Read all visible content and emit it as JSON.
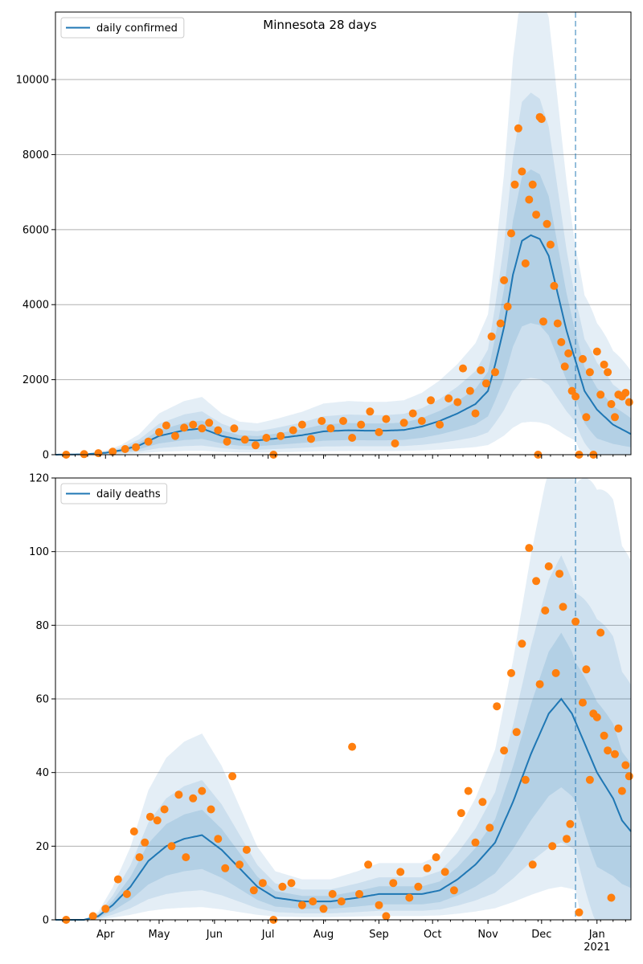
{
  "figure_title": "Minnesota 28 days",
  "colors": {
    "line": "#1f77b4",
    "points": "#ff7f0e",
    "band": "#1f77b4",
    "grid": "#b0b0b0",
    "forecast_marker": "#1f77b4"
  },
  "x_axis": {
    "month_ticks": [
      "Apr",
      "May",
      "Jun",
      "Jul",
      "Aug",
      "Sep",
      "Oct",
      "Nov",
      "Dec",
      "Jan"
    ],
    "year_label": "2021"
  },
  "chart_data": [
    {
      "type": "line",
      "legend_label": "daily confirmed",
      "legend_position": "top-left",
      "grid": "y",
      "x_range": [
        "2020-03-04",
        "2021-01-20"
      ],
      "ylim": [
        0,
        11800
      ],
      "yticks": [
        0,
        2000,
        4000,
        6000,
        8000,
        10000
      ],
      "forecast_start": "2020-12-20",
      "median_anchors": [
        [
          "2020-03-04",
          0
        ],
        [
          "2020-03-20",
          10
        ],
        [
          "2020-04-01",
          50
        ],
        [
          "2020-04-10",
          120
        ],
        [
          "2020-04-20",
          250
        ],
        [
          "2020-05-01",
          500
        ],
        [
          "2020-05-15",
          650
        ],
        [
          "2020-05-25",
          700
        ],
        [
          "2020-06-05",
          500
        ],
        [
          "2020-06-15",
          400
        ],
        [
          "2020-06-25",
          380
        ],
        [
          "2020-07-05",
          430
        ],
        [
          "2020-07-20",
          520
        ],
        [
          "2020-08-01",
          620
        ],
        [
          "2020-08-15",
          650
        ],
        [
          "2020-08-25",
          640
        ],
        [
          "2020-09-05",
          640
        ],
        [
          "2020-09-15",
          660
        ],
        [
          "2020-09-25",
          750
        ],
        [
          "2020-10-05",
          900
        ],
        [
          "2020-10-15",
          1100
        ],
        [
          "2020-10-25",
          1350
        ],
        [
          "2020-11-01",
          1700
        ],
        [
          "2020-11-05",
          2400
        ],
        [
          "2020-11-10",
          3400
        ],
        [
          "2020-11-15",
          4800
        ],
        [
          "2020-11-20",
          5700
        ],
        [
          "2020-11-25",
          5850
        ],
        [
          "2020-11-30",
          5750
        ],
        [
          "2020-12-05",
          5300
        ],
        [
          "2020-12-10",
          4300
        ],
        [
          "2020-12-15",
          3300
        ],
        [
          "2020-12-20",
          2500
        ],
        [
          "2020-12-25",
          1700
        ],
        [
          "2021-01-01",
          1200
        ],
        [
          "2021-01-10",
          800
        ],
        [
          "2021-01-20",
          550
        ]
      ],
      "points": [
        [
          "2020-03-10",
          0
        ],
        [
          "2020-03-20",
          15
        ],
        [
          "2020-03-28",
          40
        ],
        [
          "2020-04-05",
          80
        ],
        [
          "2020-04-12",
          150
        ],
        [
          "2020-04-18",
          200
        ],
        [
          "2020-04-25",
          350
        ],
        [
          "2020-05-01",
          600
        ],
        [
          "2020-05-05",
          780
        ],
        [
          "2020-05-10",
          500
        ],
        [
          "2020-05-15",
          720
        ],
        [
          "2020-05-20",
          800
        ],
        [
          "2020-05-25",
          700
        ],
        [
          "2020-05-29",
          850
        ],
        [
          "2020-06-03",
          650
        ],
        [
          "2020-06-08",
          350
        ],
        [
          "2020-06-12",
          700
        ],
        [
          "2020-06-18",
          400
        ],
        [
          "2020-06-24",
          250
        ],
        [
          "2020-06-30",
          450
        ],
        [
          "2020-07-04",
          0
        ],
        [
          "2020-07-08",
          500
        ],
        [
          "2020-07-15",
          650
        ],
        [
          "2020-07-20",
          800
        ],
        [
          "2020-07-25",
          420
        ],
        [
          "2020-07-31",
          900
        ],
        [
          "2020-08-05",
          700
        ],
        [
          "2020-08-12",
          900
        ],
        [
          "2020-08-17",
          450
        ],
        [
          "2020-08-22",
          800
        ],
        [
          "2020-08-27",
          1150
        ],
        [
          "2020-09-01",
          600
        ],
        [
          "2020-09-05",
          950
        ],
        [
          "2020-09-10",
          300
        ],
        [
          "2020-09-15",
          850
        ],
        [
          "2020-09-20",
          1100
        ],
        [
          "2020-09-25",
          900
        ],
        [
          "2020-09-30",
          1450
        ],
        [
          "2020-10-05",
          800
        ],
        [
          "2020-10-10",
          1500
        ],
        [
          "2020-10-15",
          1400
        ],
        [
          "2020-10-18",
          2300
        ],
        [
          "2020-10-22",
          1700
        ],
        [
          "2020-10-25",
          1100
        ],
        [
          "2020-10-28",
          2250
        ],
        [
          "2020-10-31",
          1900
        ],
        [
          "2020-11-03",
          3150
        ],
        [
          "2020-11-05",
          2200
        ],
        [
          "2020-11-08",
          3500
        ],
        [
          "2020-11-10",
          4650
        ],
        [
          "2020-11-12",
          3950
        ],
        [
          "2020-11-14",
          5900
        ],
        [
          "2020-11-16",
          7200
        ],
        [
          "2020-11-18",
          8700
        ],
        [
          "2020-11-20",
          7550
        ],
        [
          "2020-11-22",
          5100
        ],
        [
          "2020-11-24",
          6800
        ],
        [
          "2020-11-26",
          7200
        ],
        [
          "2020-11-28",
          6400
        ],
        [
          "2020-11-29",
          0
        ],
        [
          "2020-11-30",
          9000
        ],
        [
          "2020-12-01",
          8950
        ],
        [
          "2020-12-02",
          3550
        ],
        [
          "2020-12-04",
          6150
        ],
        [
          "2020-12-06",
          5600
        ],
        [
          "2020-12-08",
          4500
        ],
        [
          "2020-12-10",
          3500
        ],
        [
          "2020-12-12",
          3000
        ],
        [
          "2020-12-14",
          2350
        ],
        [
          "2020-12-16",
          2700
        ],
        [
          "2020-12-18",
          1700
        ],
        [
          "2020-12-20",
          1550
        ],
        [
          "2020-12-22",
          0
        ],
        [
          "2020-12-24",
          2550
        ],
        [
          "2020-12-26",
          1000
        ],
        [
          "2020-12-28",
          2200
        ],
        [
          "2020-12-30",
          0
        ],
        [
          "2021-01-01",
          2750
        ],
        [
          "2021-01-03",
          1600
        ],
        [
          "2021-01-05",
          2400
        ],
        [
          "2021-01-07",
          2200
        ],
        [
          "2021-01-09",
          1350
        ],
        [
          "2021-01-11",
          1000
        ],
        [
          "2021-01-13",
          1600
        ],
        [
          "2021-01-15",
          1550
        ],
        [
          "2021-01-17",
          1650
        ],
        [
          "2021-01-19",
          1400
        ]
      ]
    },
    {
      "type": "line",
      "legend_label": "daily deaths",
      "legend_position": "top-left",
      "grid": "y",
      "x_range": [
        "2020-03-04",
        "2021-01-20"
      ],
      "ylim": [
        0,
        120
      ],
      "yticks": [
        0,
        20,
        40,
        60,
        80,
        100,
        120
      ],
      "forecast_start": "2020-12-20",
      "median_anchors": [
        [
          "2020-03-04",
          0
        ],
        [
          "2020-03-20",
          0
        ],
        [
          "2020-03-28",
          1
        ],
        [
          "2020-04-05",
          4
        ],
        [
          "2020-04-15",
          9
        ],
        [
          "2020-04-25",
          16
        ],
        [
          "2020-05-05",
          20
        ],
        [
          "2020-05-15",
          22
        ],
        [
          "2020-05-25",
          23
        ],
        [
          "2020-06-05",
          19
        ],
        [
          "2020-06-15",
          14
        ],
        [
          "2020-06-25",
          9
        ],
        [
          "2020-07-05",
          6
        ],
        [
          "2020-07-20",
          5
        ],
        [
          "2020-08-05",
          5
        ],
        [
          "2020-08-20",
          6
        ],
        [
          "2020-09-01",
          7
        ],
        [
          "2020-09-15",
          7
        ],
        [
          "2020-09-25",
          7
        ],
        [
          "2020-10-05",
          8
        ],
        [
          "2020-10-15",
          11
        ],
        [
          "2020-10-25",
          15
        ],
        [
          "2020-11-05",
          21
        ],
        [
          "2020-11-15",
          32
        ],
        [
          "2020-11-25",
          45
        ],
        [
          "2020-12-05",
          56
        ],
        [
          "2020-12-12",
          60
        ],
        [
          "2020-12-18",
          56
        ],
        [
          "2020-12-25",
          48
        ],
        [
          "2021-01-01",
          40
        ],
        [
          "2021-01-10",
          33
        ],
        [
          "2021-01-15",
          27
        ],
        [
          "2021-01-20",
          24
        ]
      ],
      "points": [
        [
          "2020-03-10",
          0
        ],
        [
          "2020-03-25",
          1
        ],
        [
          "2020-04-01",
          3
        ],
        [
          "2020-04-08",
          11
        ],
        [
          "2020-04-13",
          7
        ],
        [
          "2020-04-17",
          24
        ],
        [
          "2020-04-20",
          17
        ],
        [
          "2020-04-23",
          21
        ],
        [
          "2020-04-26",
          28
        ],
        [
          "2020-04-30",
          27
        ],
        [
          "2020-05-04",
          30
        ],
        [
          "2020-05-08",
          20
        ],
        [
          "2020-05-12",
          34
        ],
        [
          "2020-05-16",
          17
        ],
        [
          "2020-05-20",
          33
        ],
        [
          "2020-05-25",
          35
        ],
        [
          "2020-05-30",
          30
        ],
        [
          "2020-06-03",
          22
        ],
        [
          "2020-06-07",
          14
        ],
        [
          "2020-06-11",
          39
        ],
        [
          "2020-06-15",
          15
        ],
        [
          "2020-06-19",
          19
        ],
        [
          "2020-06-23",
          8
        ],
        [
          "2020-06-28",
          10
        ],
        [
          "2020-07-04",
          0
        ],
        [
          "2020-07-09",
          9
        ],
        [
          "2020-07-14",
          10
        ],
        [
          "2020-07-20",
          4
        ],
        [
          "2020-07-26",
          5
        ],
        [
          "2020-08-01",
          3
        ],
        [
          "2020-08-06",
          7
        ],
        [
          "2020-08-11",
          5
        ],
        [
          "2020-08-17",
          47
        ],
        [
          "2020-08-21",
          7
        ],
        [
          "2020-08-26",
          15
        ],
        [
          "2020-09-01",
          4
        ],
        [
          "2020-09-05",
          1
        ],
        [
          "2020-09-09",
          10
        ],
        [
          "2020-09-13",
          13
        ],
        [
          "2020-09-18",
          6
        ],
        [
          "2020-09-23",
          9
        ],
        [
          "2020-09-28",
          14
        ],
        [
          "2020-10-03",
          17
        ],
        [
          "2020-10-08",
          13
        ],
        [
          "2020-10-13",
          8
        ],
        [
          "2020-10-17",
          29
        ],
        [
          "2020-10-21",
          35
        ],
        [
          "2020-10-25",
          21
        ],
        [
          "2020-10-29",
          32
        ],
        [
          "2020-11-02",
          25
        ],
        [
          "2020-11-06",
          58
        ],
        [
          "2020-11-10",
          46
        ],
        [
          "2020-11-14",
          67
        ],
        [
          "2020-11-17",
          51
        ],
        [
          "2020-11-20",
          75
        ],
        [
          "2020-11-22",
          38
        ],
        [
          "2020-11-24",
          101
        ],
        [
          "2020-11-26",
          15
        ],
        [
          "2020-11-28",
          92
        ],
        [
          "2020-11-30",
          64
        ],
        [
          "2020-12-03",
          84
        ],
        [
          "2020-12-05",
          96
        ],
        [
          "2020-12-07",
          20
        ],
        [
          "2020-12-09",
          67
        ],
        [
          "2020-12-11",
          94
        ],
        [
          "2020-12-13",
          85
        ],
        [
          "2020-12-15",
          22
        ],
        [
          "2020-12-17",
          26
        ],
        [
          "2020-12-20",
          81
        ],
        [
          "2020-12-22",
          2
        ],
        [
          "2020-12-24",
          59
        ],
        [
          "2020-12-26",
          68
        ],
        [
          "2020-12-28",
          38
        ],
        [
          "2020-12-30",
          56
        ],
        [
          "2021-01-01",
          55
        ],
        [
          "2021-01-03",
          78
        ],
        [
          "2021-01-05",
          50
        ],
        [
          "2021-01-07",
          46
        ],
        [
          "2021-01-09",
          6
        ],
        [
          "2021-01-11",
          45
        ],
        [
          "2021-01-13",
          52
        ],
        [
          "2021-01-15",
          35
        ],
        [
          "2021-01-17",
          42
        ],
        [
          "2021-01-19",
          39
        ]
      ]
    }
  ]
}
